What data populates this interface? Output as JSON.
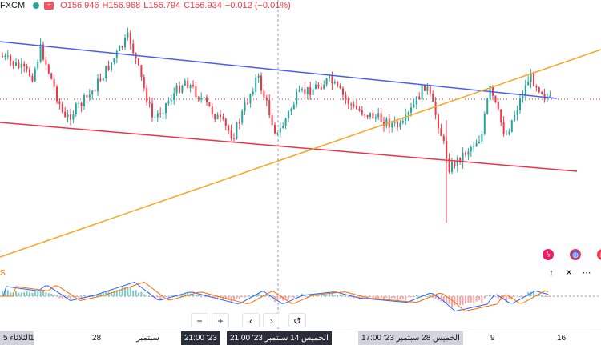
{
  "ohlc": {
    "symbol": "FXCM",
    "open": "O156.946",
    "high": "H156.968",
    "low": "L156.794",
    "close": "C156.934",
    "change": "−0.012 (−0.01%)",
    "eq_label": "="
  },
  "colors": {
    "up": "#26a69a",
    "down": "#f23645",
    "channel_top": "#4a5cf0",
    "channel_bottom": "#f0304a",
    "trendline": "#f5a623",
    "macd_line": "#2962ff",
    "signal_line": "#ff6d00"
  },
  "xaxis": {
    "labels": [
      "الثلاثاء 5",
      "1",
      "28",
      "سبتمبر",
      "9",
      "16"
    ],
    "dark_label_left": "21:00  '23",
    "dark_label_main": "21:00  '23 الخميس 14 سبتمبر",
    "gray_label_main": "17:00  '23  الخميس 28 سبتمبر"
  },
  "controls": {
    "minus": "−",
    "plus": "+",
    "left": "‹",
    "right": "›",
    "reset": "↺"
  },
  "macd": {
    "label": "S"
  },
  "side_buttons": {
    "flash_icon": "ϟ",
    "globe_icon": "◍",
    "alert_icon": "◉"
  },
  "macd_buttons": {
    "up": "↑",
    "close": "✕",
    "more": "⋯"
  }
}
